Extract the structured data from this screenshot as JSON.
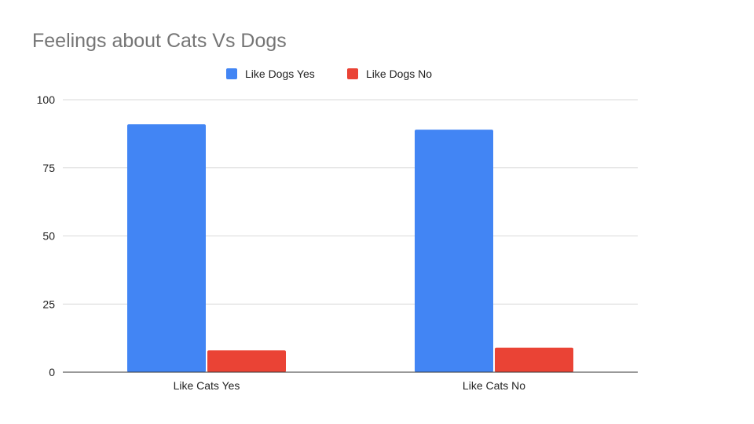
{
  "chart_data": {
    "type": "bar",
    "title": "Feelings about Cats Vs Dogs",
    "xlabel": "",
    "ylabel": "",
    "categories": [
      "Like Cats Yes",
      "Like Cats No"
    ],
    "series": [
      {
        "name": "Like Dogs Yes",
        "values": [
          91,
          89
        ],
        "color": "#4285F4"
      },
      {
        "name": "Like Dogs No",
        "values": [
          8,
          9
        ],
        "color": "#EA4335"
      }
    ],
    "ylim": [
      0,
      100
    ],
    "yticks": [
      0,
      25,
      50,
      75,
      100
    ],
    "ytick_labels": [
      "0",
      "25",
      "50",
      "75",
      "100"
    ],
    "grid": true,
    "legend_position": "top"
  }
}
